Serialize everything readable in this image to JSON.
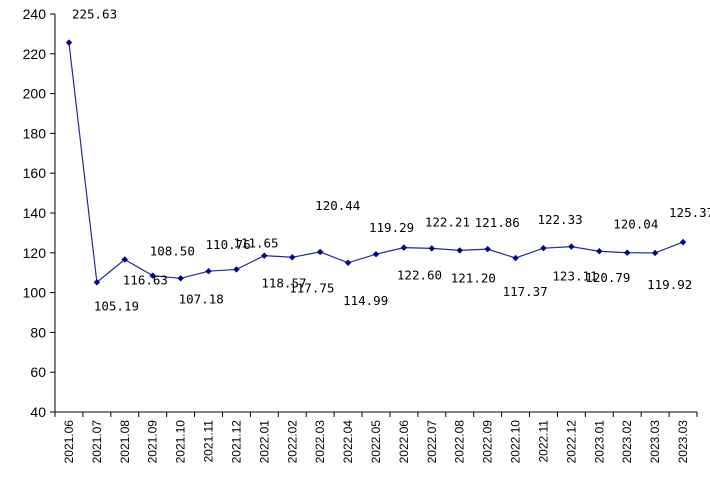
{
  "chart_data": {
    "type": "line",
    "title": "",
    "xlabel": "",
    "ylabel": "",
    "ylim": [
      40,
      240
    ],
    "yticks": [
      40,
      60,
      80,
      100,
      120,
      140,
      160,
      180,
      200,
      220,
      240
    ],
    "grid": false,
    "legend": "none",
    "colors": {
      "line": "#1f2a9a",
      "marker": "#00008b",
      "axis": "#000000"
    },
    "categories": [
      "2021.06",
      "2021.07",
      "2021.08",
      "2021.09",
      "2021.10",
      "2021.11",
      "2021.12",
      "2022.01",
      "2022.02",
      "2022.03",
      "2022.04",
      "2022.05",
      "2022.06",
      "2022.07",
      "2022.08",
      "2022.09",
      "2022.10",
      "2022.11",
      "2022.12",
      "2023.01",
      "2023.02",
      "2023.03",
      "2023.03"
    ],
    "values": [
      225.63,
      105.19,
      116.63,
      108.5,
      107.18,
      110.76,
      111.65,
      118.57,
      117.75,
      120.44,
      114.99,
      119.29,
      122.6,
      122.21,
      121.2,
      121.86,
      117.37,
      122.33,
      123.11,
      120.79,
      120.04,
      119.92,
      125.37
    ],
    "labels": [
      "225.63",
      "105.19",
      "116.63",
      "108.50",
      "107.18",
      "110.76",
      "111.65",
      "118.57",
      "117.75",
      "120.44",
      "114.99",
      "119.29",
      "122.60",
      "122.21",
      "121.20",
      "121.86",
      "117.37",
      "122.33",
      "123.11",
      "120.79",
      "120.04",
      "119.92",
      "125.37"
    ]
  }
}
